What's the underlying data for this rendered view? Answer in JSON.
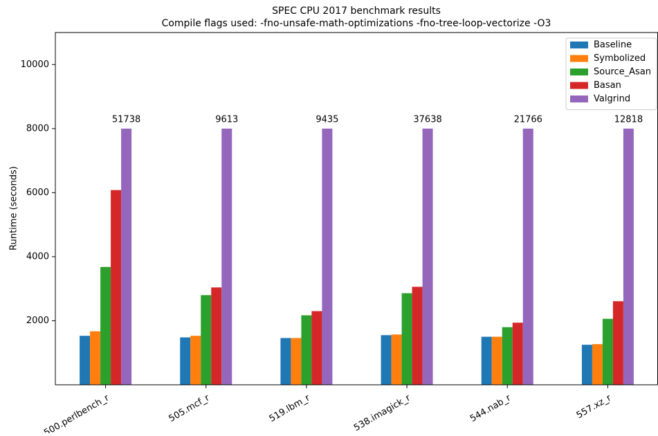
{
  "chart_data": {
    "type": "bar",
    "title": "SPEC CPU 2017 benchmark results",
    "subtitle": "Compile flags used: -fno-unsafe-math-optimizations -fno-tree-loop-vectorize -O3",
    "y_label": "Runtime (seconds)",
    "categories": [
      "500.perlbench_r",
      "505.mcf_r",
      "519.lbm_r",
      "538.imagick_r",
      "544.nab_r",
      "557.xz_r"
    ],
    "series": [
      {
        "name": "Baseline",
        "color": "#1f77b4",
        "values": [
          1530,
          1480,
          1460,
          1550,
          1500,
          1250
        ]
      },
      {
        "name": "Symbolized",
        "color": "#ff7f0e",
        "values": [
          1670,
          1530,
          1460,
          1570,
          1500,
          1270
        ]
      },
      {
        "name": "Source_Asan",
        "color": "#2ca02c",
        "values": [
          3680,
          2800,
          2170,
          2860,
          1800,
          2060
        ]
      },
      {
        "name": "Basan",
        "color": "#d62728",
        "values": [
          6080,
          3040,
          2300,
          3060,
          1940,
          2610
        ]
      },
      {
        "name": "Valgrind",
        "color": "#9467bd",
        "values": [
          8000,
          8000,
          8000,
          8000,
          8000,
          8000
        ]
      }
    ],
    "annotations": [
      "51738",
      "9613",
      "9435",
      "37638",
      "21766",
      "12818"
    ],
    "ylim": [
      0,
      11000
    ],
    "yticks": [
      2000,
      4000,
      6000,
      8000,
      10000
    ],
    "legend": "upper right"
  }
}
